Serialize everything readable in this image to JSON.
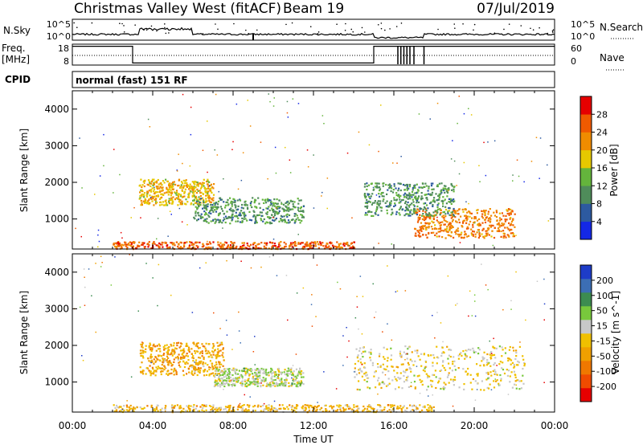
{
  "header": {
    "title": "Christmas Valley West (fitACF)",
    "beam": "Beam 19",
    "date": "07/Jul/2019"
  },
  "noise_panel": {
    "left_label": "N.Sky",
    "left_ticks": [
      "10^5",
      "10^0"
    ],
    "right_label": "N.Search",
    "right_ticks": [
      "10^5",
      "10^0"
    ]
  },
  "freq_panel": {
    "left_label_line1": "Freq.",
    "left_label_line2": "[MHz]",
    "left_ticks": [
      "18",
      "8"
    ],
    "right_label": "Nave",
    "right_ticks": [
      "60",
      "0"
    ]
  },
  "cpid": {
    "label": "CPID",
    "value": "normal (fast) 151 RF"
  },
  "x_axis": {
    "label": "Time UT",
    "ticks": [
      "00:00",
      "04:00",
      "08:00",
      "12:00",
      "16:00",
      "20:00",
      "00:00"
    ]
  },
  "colors": {
    "power_scale": [
      "#1428e6",
      "#2d5aa0",
      "#4f8c5a",
      "#64b43c",
      "#e6c800",
      "#f08c00",
      "#f05a00",
      "#e60000"
    ],
    "velocity_scale": [
      "#e60000",
      "#f04b00",
      "#f07800",
      "#f0a000",
      "#f0c000",
      "#c8c8c8",
      "#78c83c",
      "#3c8c50",
      "#3c6eb4",
      "#1e3cc8"
    ]
  },
  "chart_data": [
    {
      "type": "line",
      "title": "N.Sky / N.Search",
      "x_range_hours": [
        0,
        24
      ],
      "y_scale": "log",
      "ylim": [
        1,
        100000
      ]
    },
    {
      "type": "line",
      "title": "Freq. / Nave",
      "x_range_hours": [
        0,
        24
      ],
      "ylim": [
        8,
        18
      ],
      "series": [
        {
          "name": "Freq.",
          "x": [
            0,
            3,
            3,
            15,
            15,
            24
          ],
          "y": [
            17,
            17,
            9,
            9,
            17,
            17
          ]
        }
      ]
    },
    {
      "type": "heatmap",
      "ylabel": "Slant Range [km]",
      "xlabel": "Time UT",
      "x_range_hours": [
        0,
        24
      ],
      "ylim": [
        180,
        4500
      ],
      "y_ticks": [
        1000,
        2000,
        3000,
        4000
      ],
      "colorbar": {
        "label": "Power [dB]",
        "ticks": [
          "4",
          "8",
          "12",
          "16",
          "20",
          "24",
          "28"
        ],
        "range": [
          0,
          30
        ]
      },
      "regions": [
        {
          "t_start": 3.3,
          "t_end": 7.0,
          "r_start": 1400,
          "r_end": 2100,
          "value": 18
        },
        {
          "t_start": 6.0,
          "t_end": 11.5,
          "r_start": 900,
          "r_end": 1600,
          "value": 10
        },
        {
          "t_start": 17.0,
          "t_end": 22.0,
          "r_start": 500,
          "r_end": 1300,
          "value": 22
        },
        {
          "t_start": 14.5,
          "t_end": 19.0,
          "r_start": 1100,
          "r_end": 2000,
          "value": 10
        },
        {
          "t_start": 2.0,
          "t_end": 14.0,
          "r_start": 200,
          "r_end": 400,
          "value": 24
        }
      ]
    },
    {
      "type": "heatmap",
      "ylabel": "Slant Range [km]",
      "xlabel": "Time UT",
      "x_range_hours": [
        0,
        24
      ],
      "ylim": [
        180,
        4500
      ],
      "y_ticks": [
        1000,
        2000,
        3000,
        4000
      ],
      "colorbar": {
        "label": "Velocity [m s^-1]",
        "ticks": [
          "200",
          "100",
          "50",
          "15",
          "-15",
          "-50",
          "-100",
          "-200"
        ],
        "range": [
          -250,
          250
        ]
      },
      "regions": [
        {
          "t_start": 3.3,
          "t_end": 7.5,
          "r_start": 1200,
          "r_end": 2100,
          "value": -60
        },
        {
          "t_start": 7.0,
          "t_end": 11.5,
          "r_start": 900,
          "r_end": 1400,
          "value": 40
        },
        {
          "t_start": 14.0,
          "t_end": 22.5,
          "r_start": 800,
          "r_end": 2000,
          "value": 0
        },
        {
          "t_start": 2.0,
          "t_end": 18.0,
          "r_start": 200,
          "r_end": 400,
          "value": -40
        }
      ]
    }
  ]
}
